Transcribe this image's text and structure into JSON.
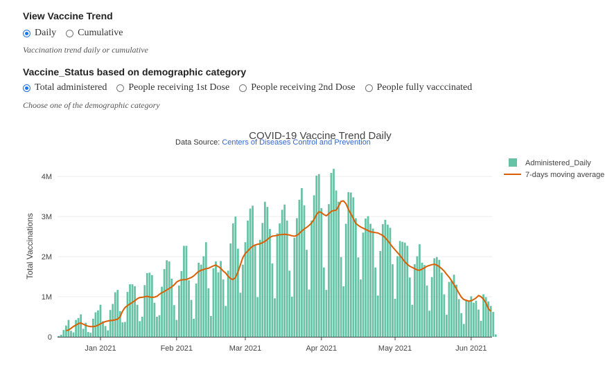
{
  "controls": {
    "trend": {
      "heading": "View Vaccine Trend",
      "options": [
        {
          "label": "Daily",
          "selected": true
        },
        {
          "label": "Cumulative",
          "selected": false
        }
      ],
      "hint": "Vaccination trend daily or cumulative"
    },
    "status": {
      "heading": "Vaccine_Status based on demographic category",
      "options": [
        {
          "label": "Total administered",
          "selected": true
        },
        {
          "label": "People receiving 1st Dose",
          "selected": false
        },
        {
          "label": "People receiving 2nd Dose",
          "selected": false
        },
        {
          "label": "People fully vacccinated",
          "selected": false
        }
      ],
      "hint": "Choose one of the demographic category"
    }
  },
  "colors": {
    "bar": "#66c2a5",
    "line": "#d95f02",
    "radio_accent": "#1a73e8"
  },
  "chart_data": {
    "type": "bar",
    "title": "COVID-19 Vaccine Trend Daily",
    "subtitle_prefix": "Data Source:",
    "subtitle_link": "Centers of Diseases Control and Prevention",
    "xlabel": "",
    "ylabel": "Total Vaccinations",
    "ylim": [
      0,
      4400000
    ],
    "y_ticks": [
      {
        "value": 0,
        "label": "0"
      },
      {
        "value": 1000000,
        "label": "1M"
      },
      {
        "value": 2000000,
        "label": "2M"
      },
      {
        "value": 3000000,
        "label": "3M"
      },
      {
        "value": 4000000,
        "label": "4M"
      }
    ],
    "x_ticks": [
      {
        "day": 17,
        "label": "Jan 2021"
      },
      {
        "day": 48,
        "label": "Feb 2021"
      },
      {
        "day": 76,
        "label": "Mar 2021"
      },
      {
        "day": 107,
        "label": "Apr 2021"
      },
      {
        "day": 137,
        "label": "May 2021"
      },
      {
        "day": 168,
        "label": "Jun 2021"
      }
    ],
    "x_range_days": [
      -0.5,
      176.5
    ],
    "x_note": "day index 0 = 2020-12-15",
    "legend_position": "top-right",
    "series": [
      {
        "name": "Administered_Daily",
        "kind": "bar",
        "values": [
          20000,
          50000,
          170000,
          280000,
          420000,
          150000,
          110000,
          420000,
          470000,
          560000,
          200000,
          350000,
          120000,
          100000,
          450000,
          610000,
          660000,
          800000,
          390000,
          270000,
          160000,
          670000,
          820000,
          1110000,
          1170000,
          640000,
          360000,
          370000,
          1120000,
          1310000,
          1310000,
          1260000,
          800000,
          390000,
          500000,
          1290000,
          1590000,
          1600000,
          1540000,
          850000,
          500000,
          540000,
          1250000,
          1690000,
          1910000,
          1880000,
          1450000,
          790000,
          420000,
          1280000,
          1640000,
          2270000,
          2270000,
          1410000,
          920000,
          450000,
          1330000,
          1850000,
          1800000,
          2010000,
          2360000,
          1210000,
          520000,
          1710000,
          1880000,
          1610000,
          1890000,
          1430000,
          770000,
          1650000,
          2330000,
          2830000,
          3000000,
          2200000,
          1100000,
          1800000,
          2360000,
          2900000,
          3200000,
          3270000,
          2300000,
          990000,
          2420000,
          2840000,
          3370000,
          3240000,
          2690000,
          1830000,
          960000,
          2580000,
          2830000,
          3170000,
          3300000,
          2900000,
          1650000,
          1000000,
          2470000,
          2960000,
          3420000,
          3710000,
          3280000,
          2170000,
          1180000,
          2900000,
          3530000,
          4020000,
          4060000,
          3210000,
          1730000,
          1170000,
          3310000,
          4090000,
          4190000,
          3650000,
          3370000,
          1990000,
          1260000,
          2820000,
          3610000,
          3600000,
          3480000,
          2960000,
          1980000,
          1430000,
          2600000,
          2950000,
          3010000,
          2820000,
          2700000,
          1730000,
          1030000,
          2140000,
          2810000,
          2920000,
          2800000,
          2720000,
          1810000,
          950000,
          2010000,
          2390000,
          2370000,
          2350000,
          2270000,
          1480000,
          800000,
          1810000,
          2010000,
          2310000,
          1850000,
          1790000,
          1280000,
          650000,
          1490000,
          1960000,
          1990000,
          1920000,
          1600000,
          1060000,
          550000,
          1370000,
          1400000,
          1550000,
          1300000,
          940000,
          590000,
          320000,
          910000,
          880000,
          1010000,
          850000,
          900000,
          680000,
          400000,
          1060000,
          990000,
          880000,
          770000,
          620000,
          60000
        ]
      },
      {
        "name": "7-days moving average",
        "kind": "line",
        "start_day": 3,
        "values": [
          155000,
          170000,
          210000,
          260000,
          290000,
          330000,
          345000,
          315000,
          285000,
          265000,
          255000,
          255000,
          265000,
          290000,
          325000,
          355000,
          380000,
          395000,
          405000,
          410000,
          425000,
          440000,
          500000,
          640000,
          730000,
          780000,
          820000,
          860000,
          900000,
          950000,
          980000,
          985000,
          1000000,
          1010000,
          995000,
          985000,
          990000,
          1010000,
          1060000,
          1100000,
          1130000,
          1170000,
          1205000,
          1245000,
          1295000,
          1365000,
          1400000,
          1420000,
          1425000,
          1430000,
          1455000,
          1480000,
          1520000,
          1580000,
          1630000,
          1660000,
          1680000,
          1700000,
          1710000,
          1740000,
          1770000,
          1790000,
          1750000,
          1710000,
          1640000,
          1590000,
          1510000,
          1450000,
          1430000,
          1480000,
          1620000,
          1800000,
          1980000,
          2080000,
          2140000,
          2210000,
          2260000,
          2290000,
          2310000,
          2320000,
          2350000,
          2380000,
          2430000,
          2480000,
          2510000,
          2520000,
          2530000,
          2550000,
          2550000,
          2560000,
          2550000,
          2540000,
          2520000,
          2510000,
          2530000,
          2580000,
          2640000,
          2690000,
          2730000,
          2780000,
          2840000,
          2930000,
          3050000,
          3120000,
          3100000,
          3050000,
          3020000,
          3070000,
          3130000,
          3150000,
          3160000,
          3260000,
          3380000,
          3390000,
          3320000,
          3180000,
          3070000,
          2950000,
          2830000,
          2780000,
          2740000,
          2710000,
          2680000,
          2650000,
          2620000,
          2610000,
          2600000,
          2590000,
          2560000,
          2530000,
          2470000,
          2400000,
          2320000,
          2240000,
          2170000,
          2100000,
          2030000,
          1950000,
          1870000,
          1810000,
          1760000,
          1730000,
          1700000,
          1670000,
          1660000,
          1690000,
          1720000,
          1760000,
          1780000,
          1800000,
          1810000,
          1790000,
          1750000,
          1700000,
          1640000,
          1560000,
          1490000,
          1400000,
          1300000,
          1200000,
          1090000,
          990000,
          930000,
          910000,
          890000,
          900000,
          930000,
          970000,
          1030000,
          1000000,
          940000,
          850000,
          700000,
          640000
        ]
      }
    ]
  }
}
